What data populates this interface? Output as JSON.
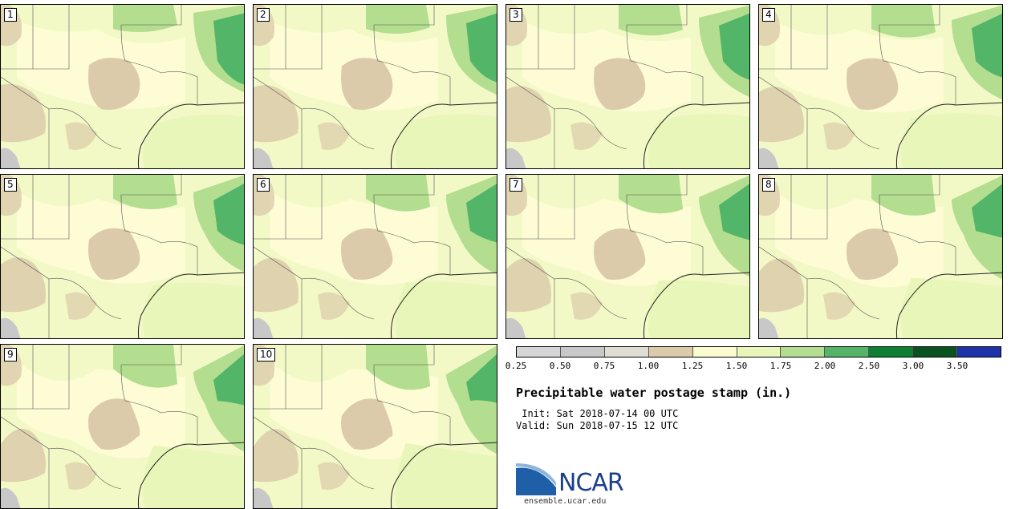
{
  "stamps": [
    {
      "label": "1"
    },
    {
      "label": "2"
    },
    {
      "label": "3"
    },
    {
      "label": "4"
    },
    {
      "label": "5"
    },
    {
      "label": "6"
    },
    {
      "label": "7"
    },
    {
      "label": "8"
    },
    {
      "label": "9"
    },
    {
      "label": "10"
    }
  ],
  "colorbar": {
    "ticks": [
      "0.25",
      "0.50",
      "0.75",
      "1.00",
      "1.25",
      "1.50",
      "1.75",
      "2.00",
      "2.50",
      "3.00",
      "3.50"
    ],
    "colors": [
      "#d6d6d6",
      "#c8c8c8",
      "#e0ded2",
      "#dccbaa",
      "#fbfbd0",
      "#e9f6b9",
      "#b3dd8f",
      "#52b567",
      "#0f7f35",
      "#0b5221",
      "#1f33a8"
    ]
  },
  "title": "Precipitable water postage stamp (in.)",
  "init_text": " Init: Sat 2018-07-14 00 UTC",
  "valid_text": "Valid: Sun 2018-07-15 12 UTC",
  "logo": {
    "name": "NCAR",
    "url": "ensemble.ucar.edu"
  }
}
